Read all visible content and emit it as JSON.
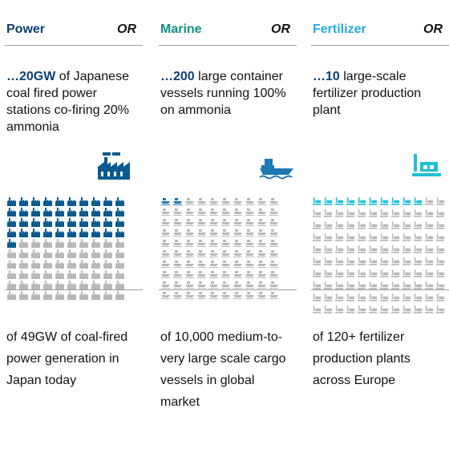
{
  "columns": [
    {
      "id": "power",
      "title": "Power",
      "or_label": "OR",
      "title_color": "#0b3f72",
      "stat_highlight": "…20GW",
      "stat_text": " of Japanese coal fired power stations co-firing 20% ammonia",
      "icon": "factory-icon",
      "grid_icon": "factory-icon",
      "grid_total": 100,
      "grid_highlighted": 41,
      "highlight_color": "#0b5a8f",
      "base_color": "#b8b8b8",
      "bottom_text": "of 49GW of coal-fired power generation in Japan today"
    },
    {
      "id": "marine",
      "title": "Marine",
      "or_label": "OR",
      "title_color": "#0e8f86",
      "stat_highlight": "…200",
      "stat_text": " large container vessels running 100% on ammonia",
      "icon": "ship-icon",
      "grid_icon": "ship-icon",
      "grid_total": 100,
      "grid_highlighted": 2,
      "highlight_color": "#1d78b3",
      "base_color": "#b8b8b8",
      "bottom_text": "of 10,000 medium-to-very large scale cargo vessels in global market"
    },
    {
      "id": "fertilizer",
      "title": "Fertilizer",
      "or_label": "OR",
      "title_color": "#27a9e1",
      "stat_highlight": "…10",
      "stat_text": " large-scale fertilizer production plant",
      "icon": "plant-icon",
      "grid_icon": "plant-icon",
      "grid_total": 120,
      "grid_highlighted": 10,
      "highlight_color": "#1fc0d6",
      "base_color": "#b8b8b8",
      "bottom_text": "of 120+ fertilizer production plants across Europe"
    }
  ]
}
